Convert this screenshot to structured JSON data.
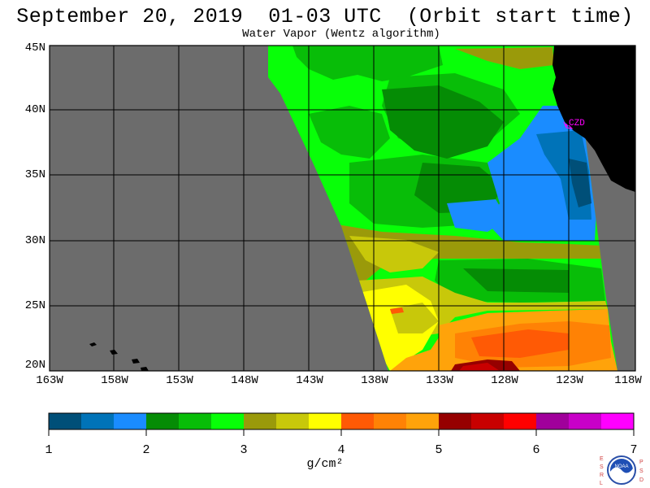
{
  "title": "September 20, 2019  01-03 UTC  (Orbit start time)",
  "subtitle": "Water Vapor (Wentz algorithm)",
  "lat_labels": [
    "45N",
    "40N",
    "35N",
    "30N",
    "25N",
    "20N"
  ],
  "lon_labels": [
    "163W",
    "158W",
    "153W",
    "148W",
    "143W",
    "138W",
    "133W",
    "128W",
    "123W",
    "118W"
  ],
  "station_label": "CZD",
  "colorbar": {
    "tick_labels": [
      "1",
      "2",
      "3",
      "4",
      "5",
      "6",
      "7"
    ],
    "units": "g/cm²",
    "colors": [
      "#004f78",
      "#0073b8",
      "#1a8cff",
      "#058c05",
      "#08bd08",
      "#08ff08",
      "#9a9a0a",
      "#c8c80a",
      "#ffff00",
      "#ff5a05",
      "#ff8205",
      "#ffa30a",
      "#960000",
      "#c80000",
      "#ff0000",
      "#a0009b",
      "#c800c8",
      "#ff00ff"
    ]
  },
  "map_colors": {
    "land_gray": "#6c6c6c",
    "land_black": "#000000",
    "station": "#ff00ff"
  },
  "logo": {
    "left_letters": [
      "E",
      "S",
      "R",
      "L"
    ],
    "right_letters": [
      "P",
      "S",
      "D"
    ],
    "text": "NOAA"
  }
}
